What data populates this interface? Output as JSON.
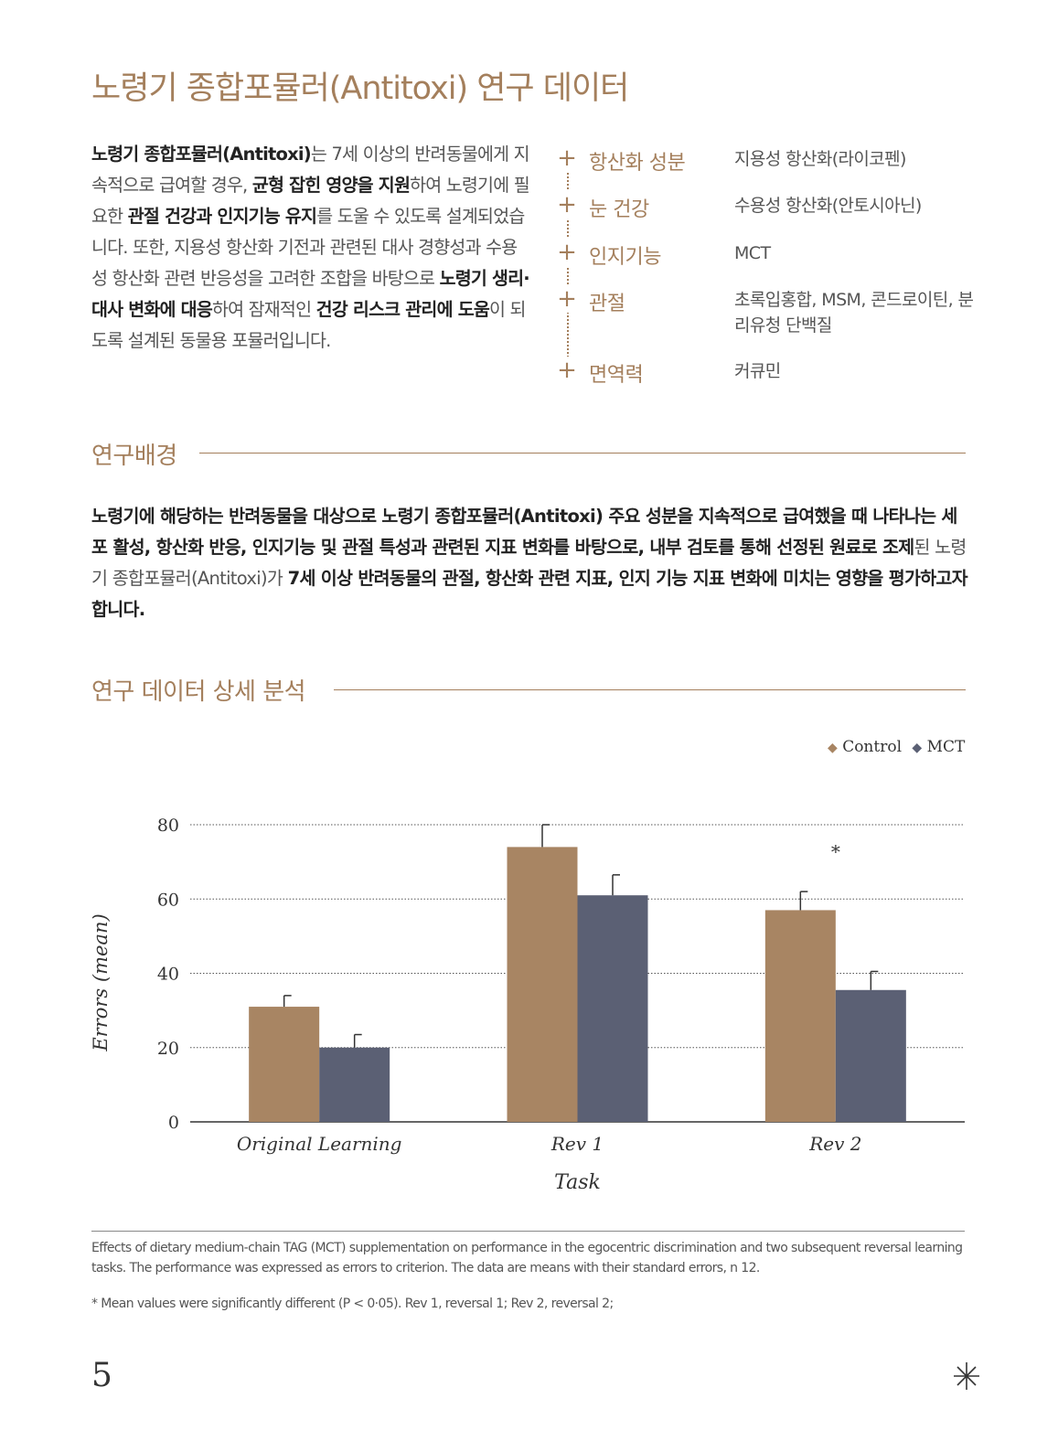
{
  "title": "노령기 종합포뮬러(Antitoxi) 연구 데이터",
  "intro": {
    "s1": "노령기 종합포뮬러(Antitoxi)",
    "s2": "는 7세 이상의 반려동물에게 지속적으로 급여할 경우, ",
    "s3": "균형 잡힌 영양을 지원",
    "s4": "하여 노령기에 필요한 ",
    "s5": "관절 건강과 인지기능 유지",
    "s6": "를 도울 수 있도록 설계되었습니다. 또한, 지용성 항산화 기전과 관련된 대사 경향성과 수용성 항산화 관련 반응성을 고려한 조합을 바탕으로 ",
    "s7": "노령기 생리·대사 변화에 대응",
    "s8": "하여 잠재적인 ",
    "s9": "건강 리스크 관리에 도움",
    "s10": "이 되도록 설계된 동물용 포뮬러입니다."
  },
  "ingredients": [
    {
      "plus": "+",
      "name": "항산화 성분",
      "value": "지용성 항산화(라이코펜)"
    },
    {
      "plus": "+",
      "name": "눈 건강",
      "value": "수용성 항산화(안토시아닌)"
    },
    {
      "plus": "+",
      "name": "인지기능",
      "value": "MCT"
    },
    {
      "plus": "+",
      "name": "관절",
      "value": "초록입홍합, MSM, 콘드로이틴, 분리유청 단백질"
    },
    {
      "plus": "+",
      "name": "면역력",
      "value": "커큐민"
    }
  ],
  "section1": {
    "heading": "연구배경",
    "b1": "노령기에 해당하는 반려동물을 대상으로 노령기 종합포뮬러(Antitoxi) 주요 성분을 지속적으로 급여했을 때 나타나는 세포 활성, 항산화 반응, 인지기능 및 관절 특성과 관련된 지표 변화를 바탕으로, 내부 검토를 통해 선정된 원료로 조제",
    "n1": "된 노령기 종합포뮬러(Antitoxi)가 ",
    "b2": "7세 이상 반려동물의 관절, 항산화 관련 지표, 인지 기능 지표 변화에 미치는 영향을 평가하고자 합니다."
  },
  "section2": {
    "heading": "연구 데이터 상세 분석"
  },
  "chart_data": {
    "type": "bar",
    "categories": [
      "Original Learning",
      "Rev 1",
      "Rev 2"
    ],
    "series": [
      {
        "name": "Control",
        "color": "#a88563",
        "values": [
          31,
          74,
          57
        ],
        "errors": [
          3,
          6,
          5
        ]
      },
      {
        "name": "MCT",
        "color": "#5b6074",
        "values": [
          20,
          61,
          35.5
        ],
        "errors": [
          3.5,
          5.5,
          5
        ]
      }
    ],
    "xlabel": "Task",
    "ylabel": "Errors (mean)",
    "ylim": [
      0,
      80
    ],
    "yticks": [
      0,
      20,
      40,
      60,
      80
    ],
    "grid": true,
    "legend_position": "top-right",
    "annotations": [
      {
        "category": "Rev 2",
        "text": "*"
      }
    ]
  },
  "legend": {
    "control_marker": "◆",
    "control": "Control",
    "mct_marker": "◆",
    "mct": "MCT"
  },
  "caption": "Effects of dietary medium-chain TAG (MCT) supplementation on performance in the egocentric discrimination and two subsequent reversal learning tasks. The performance was expressed as errors to criterion. The data are means with their standard errors, n 12.",
  "footnote": "* Mean values were significantly different (P < 0·05). Rev 1, reversal 1; Rev 2, reversal 2;",
  "page_number": "5",
  "colors": {
    "accent": "#a47f5c",
    "control": "#a88563",
    "mct": "#5b6074"
  }
}
